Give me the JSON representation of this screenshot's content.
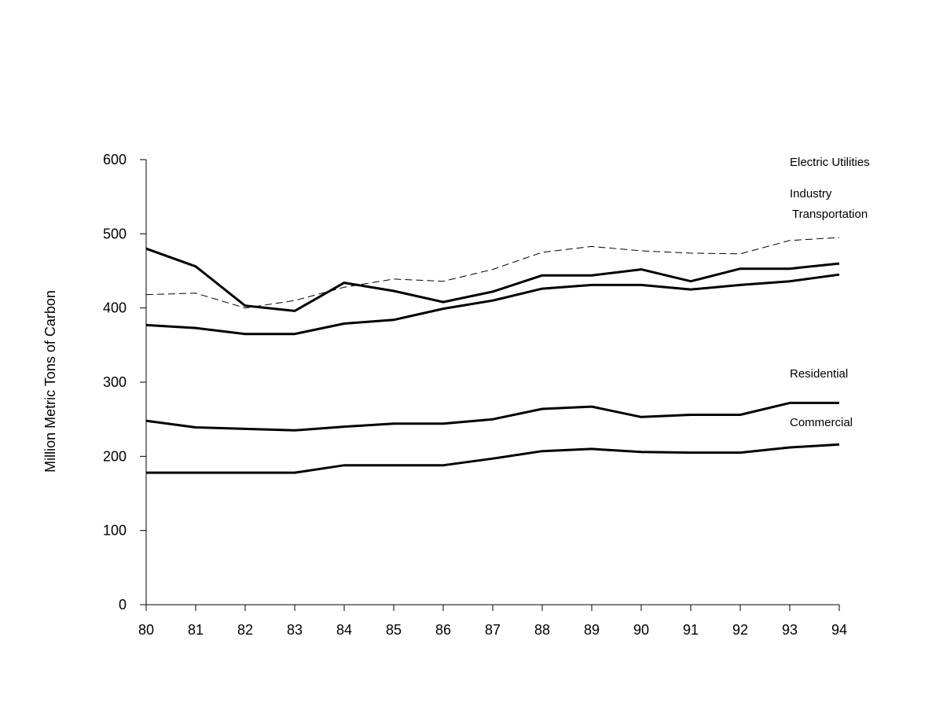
{
  "chart_data": {
    "type": "line",
    "title": "",
    "xlabel": "",
    "ylabel": "Million Metric Tons of Carbon",
    "x": [
      "80",
      "81",
      "82",
      "83",
      "84",
      "85",
      "86",
      "87",
      "88",
      "89",
      "90",
      "91",
      "92",
      "93",
      "94"
    ],
    "ylim": [
      0,
      600
    ],
    "yticks": [
      0,
      100,
      200,
      300,
      400,
      500,
      600
    ],
    "grid": false,
    "legend": "inline labels at right",
    "series": [
      {
        "name": "Electric Utilities",
        "dashed": true,
        "values": [
          418,
          420,
          400,
          410,
          428,
          439,
          436,
          452,
          475,
          483,
          477,
          474,
          473,
          491,
          495
        ]
      },
      {
        "name": "Industry",
        "dashed": false,
        "values": [
          480,
          456,
          403,
          396,
          434,
          423,
          408,
          422,
          444,
          444,
          452,
          436,
          453,
          453,
          460
        ]
      },
      {
        "name": "Transportation",
        "dashed": false,
        "values": [
          377,
          373,
          365,
          365,
          379,
          384,
          399,
          410,
          426,
          431,
          431,
          425,
          431,
          436,
          445
        ]
      },
      {
        "name": "Residential",
        "dashed": false,
        "values": [
          248,
          239,
          237,
          235,
          240,
          244,
          244,
          250,
          264,
          267,
          253,
          256,
          256,
          272,
          272
        ]
      },
      {
        "name": "Commercial",
        "dashed": false,
        "values": [
          178,
          178,
          178,
          178,
          188,
          188,
          188,
          197,
          207,
          210,
          206,
          205,
          205,
          212,
          216
        ]
      }
    ]
  }
}
